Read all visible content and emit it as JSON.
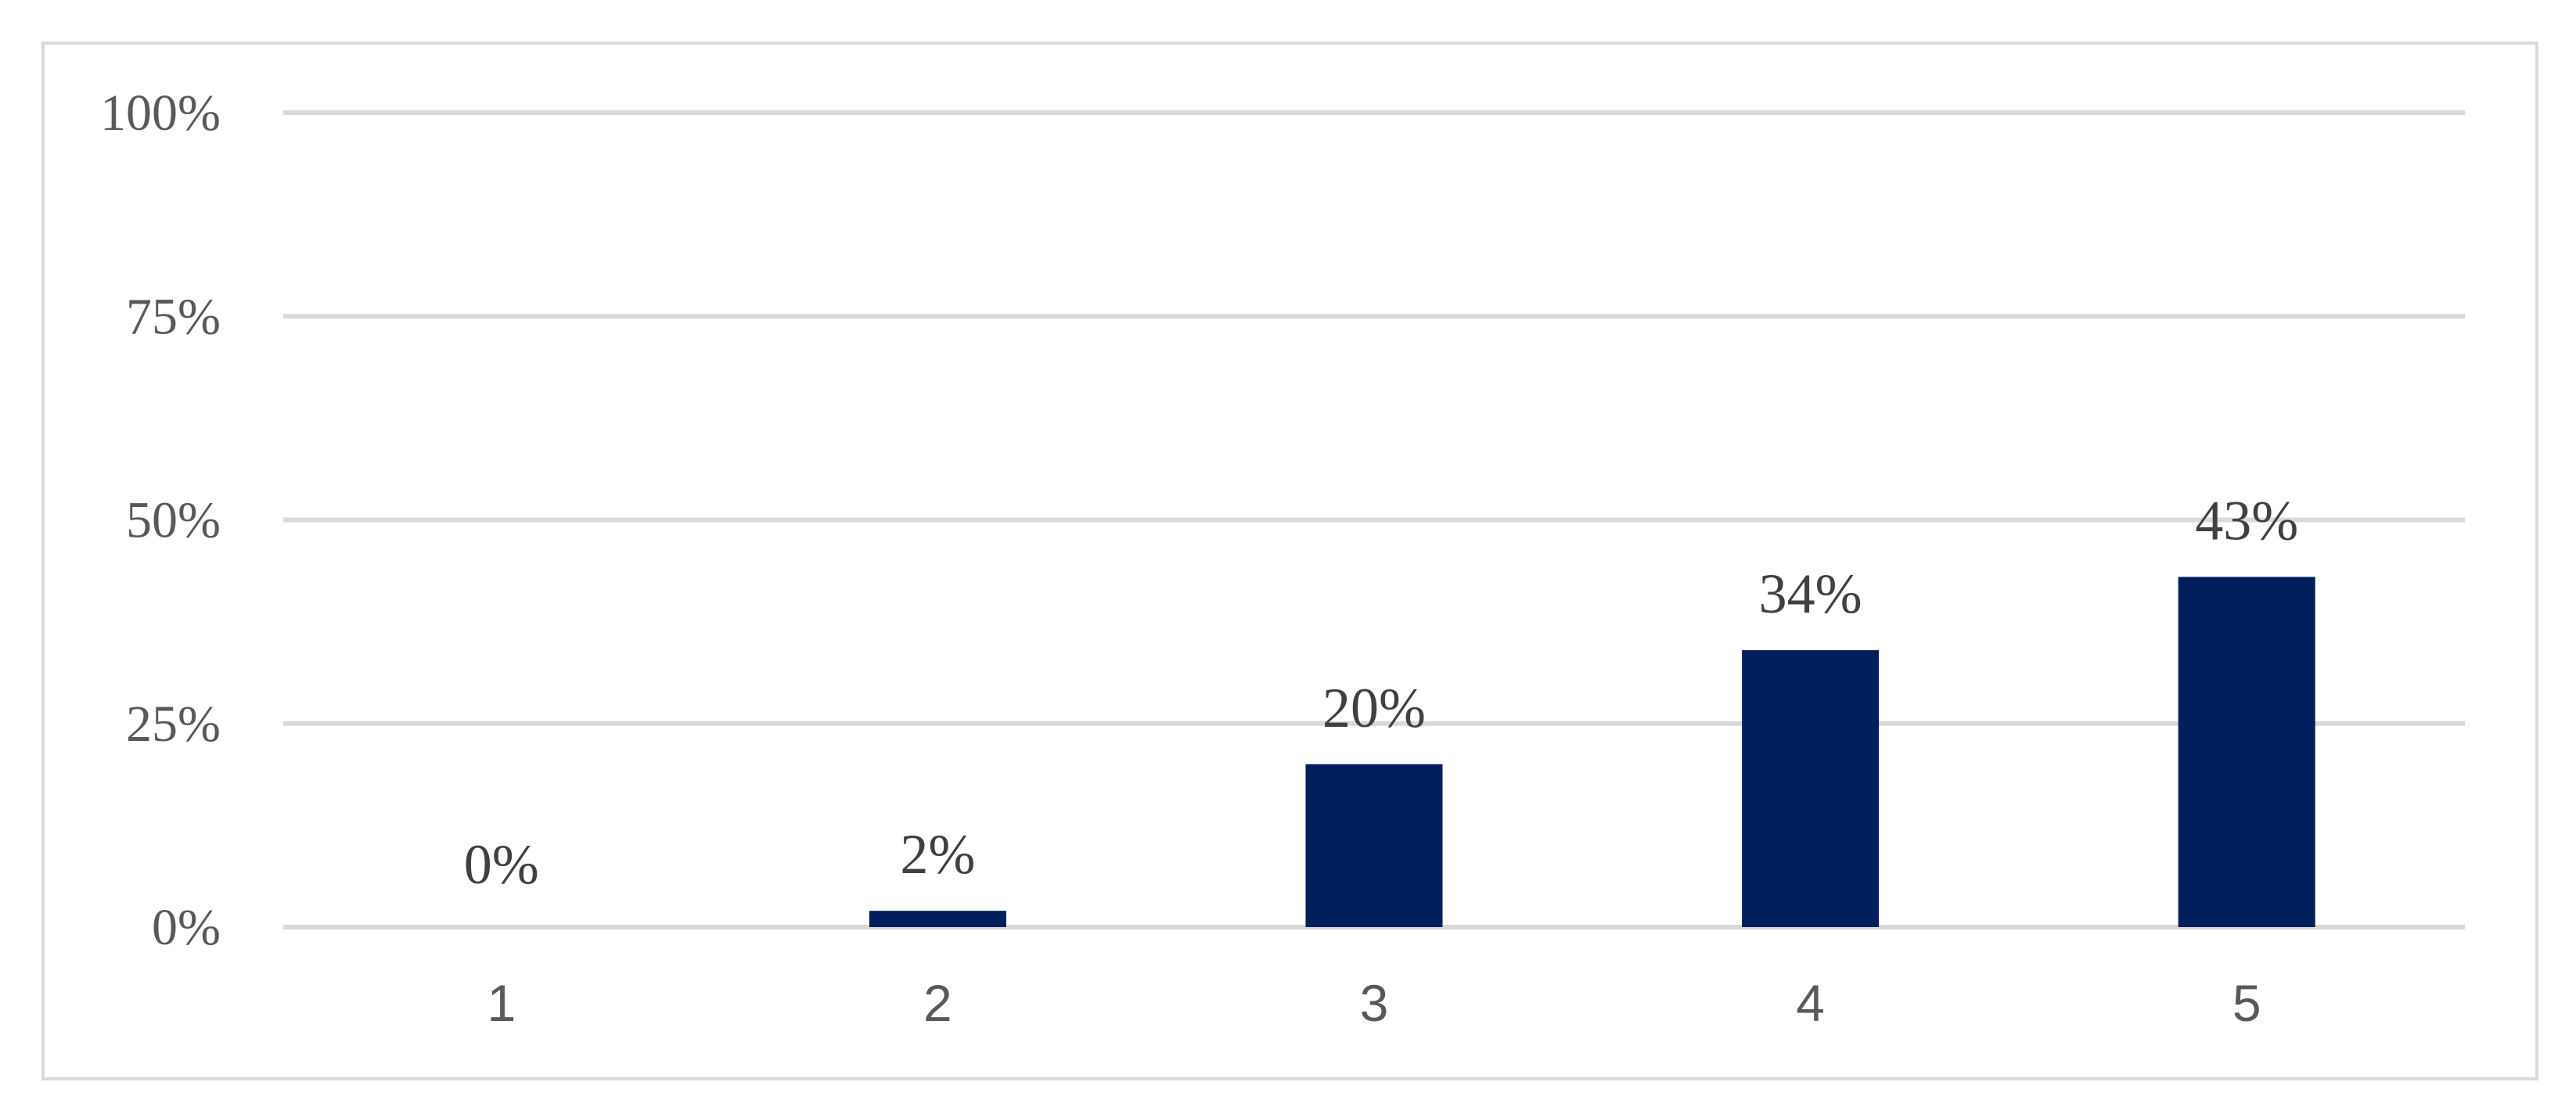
{
  "chart_data": {
    "type": "bar",
    "categories": [
      "1",
      "2",
      "3",
      "4",
      "5"
    ],
    "values": [
      0,
      2,
      20,
      34,
      43
    ],
    "data_labels": [
      "0%",
      "2%",
      "20%",
      "34%",
      "43%"
    ],
    "title": "",
    "xlabel": "",
    "ylabel": "",
    "ylim": [
      0,
      100
    ],
    "yticks": [
      0,
      25,
      50,
      75,
      100
    ],
    "ytick_labels": [
      "0%",
      "25%",
      "50%",
      "75%",
      "100%"
    ],
    "grid": true,
    "legend": "none",
    "bar_color": "#001f5c",
    "grid_color": "#d9d9d9"
  }
}
